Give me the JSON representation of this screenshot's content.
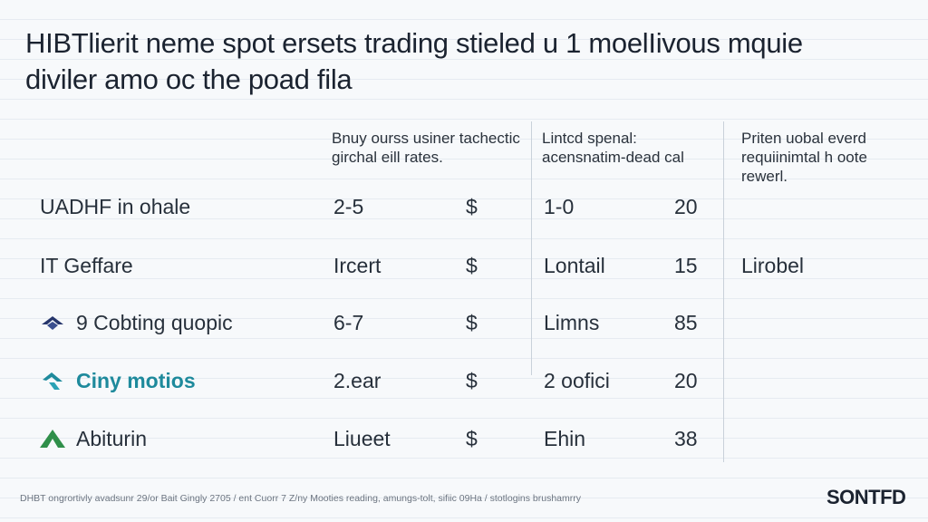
{
  "title": "HIBTlierit neme spot ersets trading stieled u 1 moelIivous mquie diviler amo oc the poad fila",
  "columns": {
    "col1": "Bnuy ourss usiner tachectic girchal eill rates.",
    "col2": "Lintcd spenal: acensnatim-dead cal",
    "col3": "Priten uobal everd requiinimtal h oote rewerl."
  },
  "rows": [
    {
      "name": "UADHF in ohale",
      "val1": "2-5",
      "currency": "$",
      "val2": "1-0",
      "num": "20",
      "extra": ""
    },
    {
      "name": "IT Geffare",
      "val1": "Ircert",
      "currency": "$",
      "val2": "Lontail",
      "num": "15",
      "extra": "Lirobel"
    },
    {
      "name": "9 Cobting quopic",
      "val1": "6-7",
      "currency": "$",
      "val2": "Limns",
      "num": "85",
      "extra": ""
    },
    {
      "name": "Ciny motios",
      "val1": "2.ear",
      "currency": "$",
      "val2": "2 oofici",
      "num": "20",
      "extra": ""
    },
    {
      "name": "Abiturin",
      "val1": "Liueet",
      "currency": "$",
      "val2": "Ehin",
      "num": "38",
      "extra": ""
    }
  ],
  "icons": {
    "row3": "navy-diamond-icon",
    "row4": "teal-arrow-icon",
    "row5": "green-triangle-icon"
  },
  "colors": {
    "accent_teal": "#1e8a9c",
    "navy": "#25356b",
    "green": "#2f8f4a"
  },
  "footer": "DHBT ongrortivly avadsunr 29/or Bait Gingly 2705 / ent Cuorr 7 Z/ny Mooties reading, amungs-tolt, sifiic 09Ha / stotlogins brushamrry",
  "brand": "SONTFD"
}
